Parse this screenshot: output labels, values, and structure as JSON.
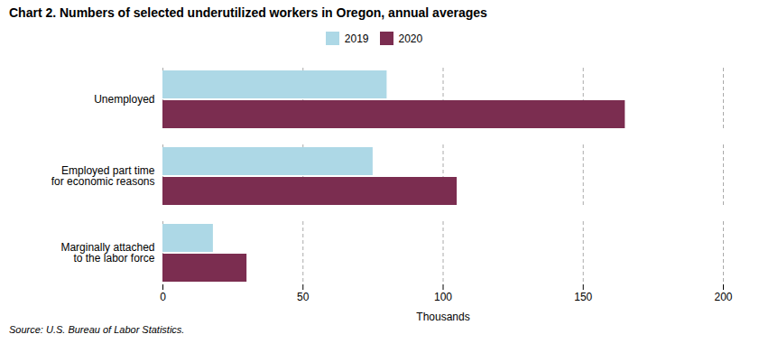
{
  "chart_data": {
    "type": "bar",
    "orientation": "horizontal",
    "title": "Chart 2. Numbers of selected underutilized workers in Oregon, annual averages",
    "categories": [
      "Unemployed",
      "Employed part time\nfor economic reasons",
      "Marginally attached\nto the labor force"
    ],
    "series": [
      {
        "name": "2019",
        "color": "#ADD8E6",
        "values": [
          80,
          75,
          18
        ]
      },
      {
        "name": "2020",
        "color": "#7B2D50",
        "values": [
          165,
          105,
          30
        ]
      }
    ],
    "xlim": [
      0,
      200
    ],
    "xticks": [
      0,
      50,
      100,
      150,
      200
    ],
    "xlabel": "Thousands",
    "grid": true,
    "legend": "top",
    "caption": "Source: U.S. Bureau of Labor Statistics."
  }
}
